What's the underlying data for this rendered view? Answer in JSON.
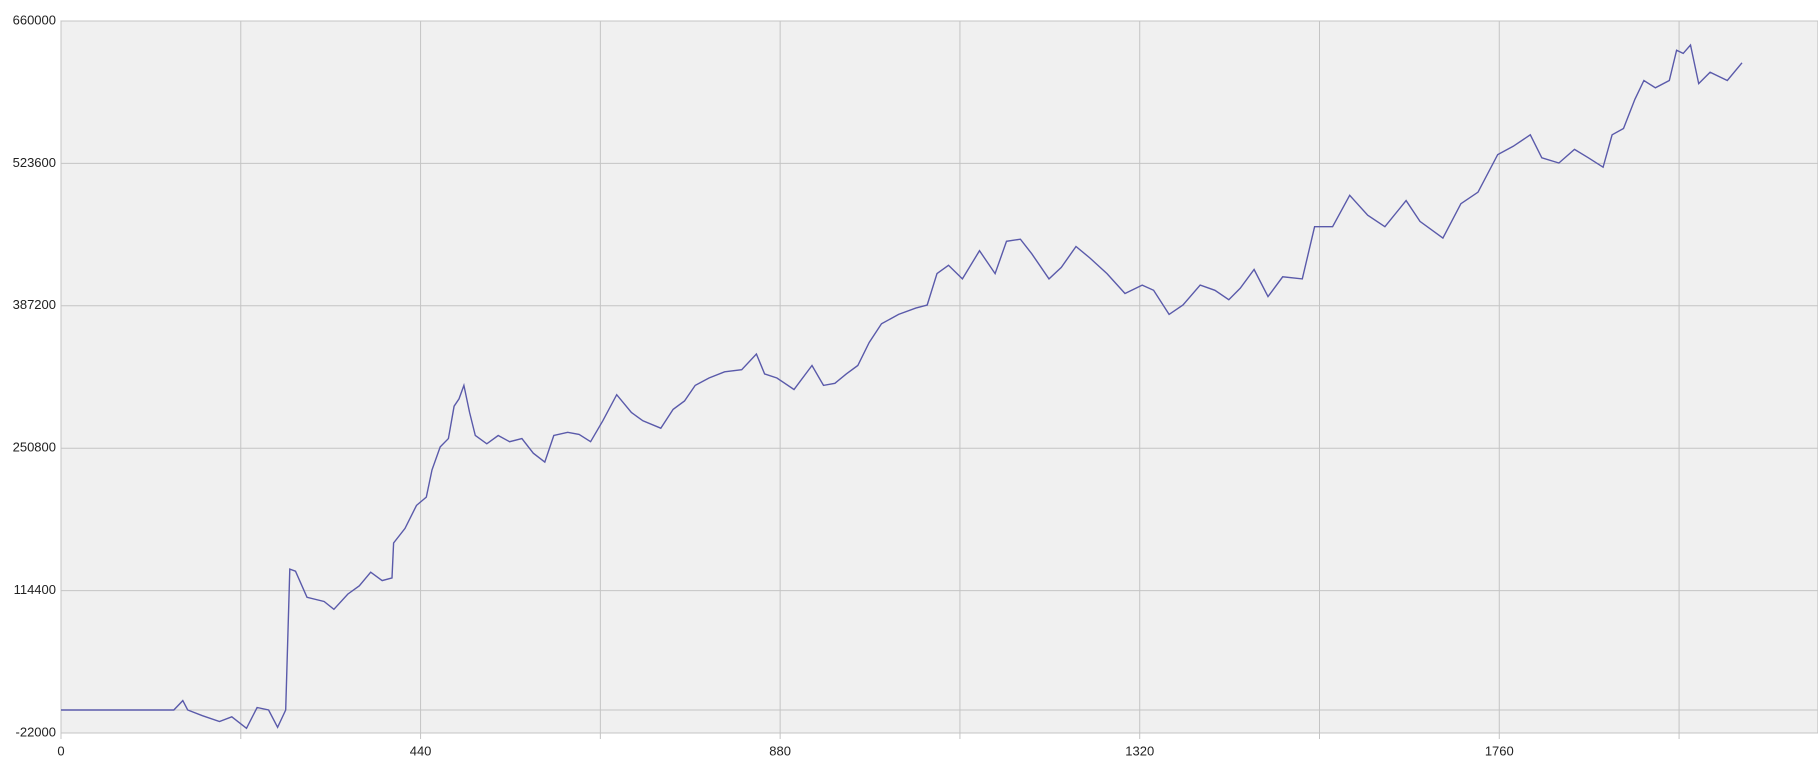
{
  "chart_data": {
    "type": "line",
    "x": [
      0,
      138,
      149,
      155,
      173,
      194,
      209,
      227,
      240,
      254,
      265,
      275,
      280,
      287,
      301,
      322,
      334,
      351,
      365,
      379,
      393,
      405,
      407,
      421,
      435,
      447,
      454,
      464,
      474,
      481,
      487,
      493,
      500,
      507,
      521,
      535,
      549,
      564,
      578,
      592,
      603,
      620,
      634,
      648,
      663,
      680,
      698,
      712,
      734,
      749,
      763,
      776,
      793,
      812,
      833,
      851,
      861,
      876,
      897,
      919,
      933,
      947,
      961,
      975,
      989,
      1004,
      1025,
      1046,
      1060,
      1072,
      1086,
      1103,
      1124,
      1143,
      1157,
      1174,
      1188,
      1209,
      1224,
      1242,
      1259,
      1280,
      1302,
      1323,
      1337,
      1356,
      1373,
      1394,
      1412,
      1429,
      1443,
      1460,
      1477,
      1495,
      1519,
      1534,
      1556,
      1577,
      1599,
      1620,
      1646,
      1663,
      1691,
      1713,
      1734,
      1758,
      1777,
      1798,
      1812,
      1833,
      1852,
      1869,
      1887,
      1898,
      1912,
      1926,
      1937,
      1951,
      1968,
      1977,
      1985,
      1994,
      2004,
      2018,
      2039,
      2057
    ],
    "values": [
      0,
      0,
      9000,
      0,
      -5400,
      -11000,
      -6500,
      -17500,
      2400,
      0,
      -16500,
      0,
      135000,
      133000,
      108000,
      104000,
      96500,
      111000,
      119000,
      132000,
      124000,
      126600,
      160000,
      174000,
      196000,
      204000,
      230000,
      252000,
      260000,
      291000,
      298000,
      311000,
      285000,
      263000,
      255000,
      263000,
      257000,
      260000,
      246000,
      237500,
      263000,
      266000,
      264000,
      257000,
      277000,
      302000,
      285000,
      277000,
      270000,
      288000,
      296000,
      311000,
      318000,
      324000,
      326000,
      341000,
      322000,
      318000,
      307000,
      330000,
      311000,
      313000,
      322000,
      330000,
      352000,
      370000,
      379000,
      385000,
      388000,
      418000,
      426000,
      413000,
      440000,
      418000,
      449000,
      451000,
      437000,
      413000,
      424000,
      444000,
      433000,
      418000,
      399000,
      407000,
      402000,
      379000,
      388000,
      407000,
      402000,
      393000,
      404000,
      422000,
      396000,
      415000,
      413000,
      463000,
      463000,
      493000,
      474000,
      463000,
      488000,
      468000,
      452000,
      485000,
      496000,
      532000,
      540000,
      551000,
      529000,
      524000,
      537000,
      529000,
      520000,
      551000,
      557000,
      585000,
      603000,
      596000,
      603000,
      632000,
      629000,
      637000,
      600000,
      611000,
      603000,
      620000
    ],
    "color": "#5a5aaa",
    "xlim": [
      0,
      2150
    ],
    "xticks": [
      0,
      440,
      880,
      1320,
      1760
    ],
    "xminor_ticks": [
      220,
      660,
      1100,
      1540,
      1980
    ],
    "ylim": [
      -22000,
      660000
    ],
    "yticks": [
      -22000,
      114400,
      250800,
      387200,
      523600,
      660000
    ],
    "grid": true,
    "zero_line": true
  }
}
